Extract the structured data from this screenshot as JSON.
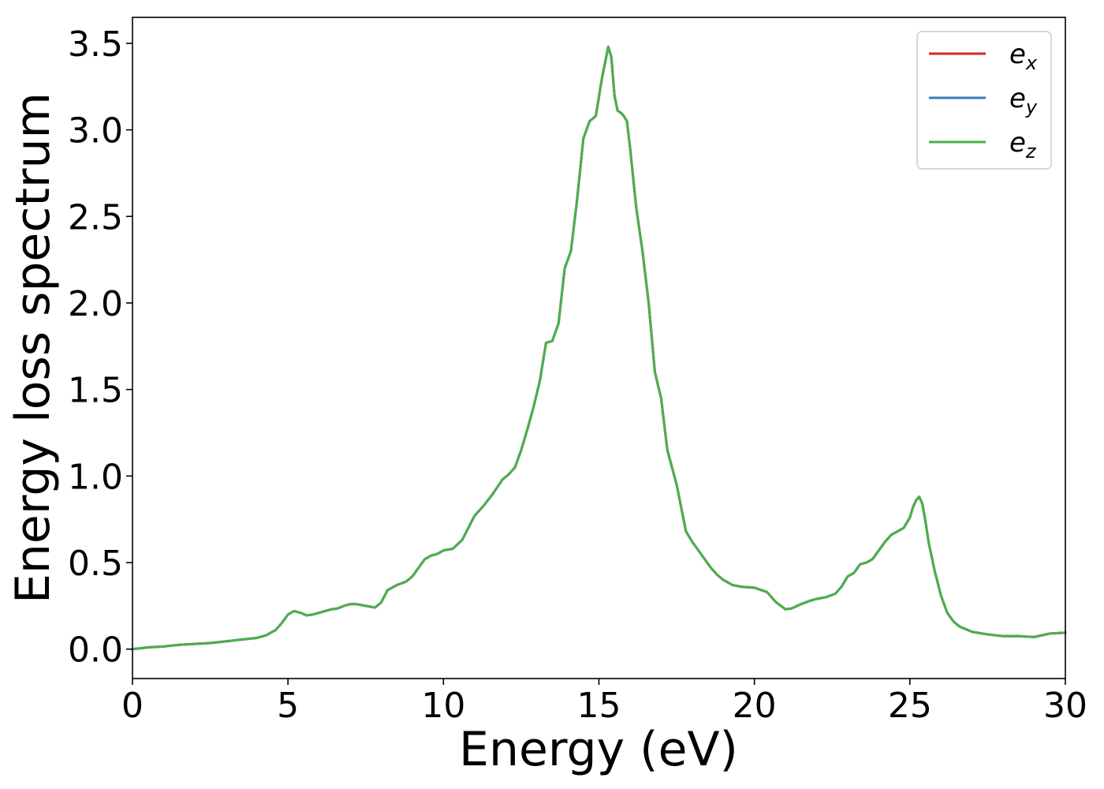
{
  "chart_data": {
    "type": "line",
    "xlabel": "Energy (eV)",
    "ylabel": "Energy loss spectrum",
    "xlim": [
      0,
      30
    ],
    "ylim": [
      -0.17,
      3.65
    ],
    "xticks": [
      0,
      5,
      10,
      15,
      20,
      25,
      30
    ],
    "xtick_labels": [
      "0",
      "5",
      "10",
      "15",
      "20",
      "25",
      "30"
    ],
    "yticks": [
      0.0,
      0.5,
      1.0,
      1.5,
      2.0,
      2.5,
      3.0,
      3.5
    ],
    "ytick_labels": [
      "0.0",
      "0.5",
      "1.0",
      "1.5",
      "2.0",
      "2.5",
      "3.0",
      "3.5"
    ],
    "grid": false,
    "legend_position": "top-right",
    "x": [
      0,
      0.5,
      1,
      1.5,
      2,
      2.5,
      3,
      3.5,
      4,
      4.3,
      4.6,
      4.8,
      5.0,
      5.2,
      5.4,
      5.6,
      5.8,
      6.0,
      6.2,
      6.4,
      6.6,
      6.8,
      7.0,
      7.2,
      7.5,
      7.8,
      8.0,
      8.2,
      8.5,
      8.8,
      9.0,
      9.2,
      9.4,
      9.6,
      9.8,
      10.0,
      10.3,
      10.6,
      10.8,
      11.0,
      11.3,
      11.6,
      11.9,
      12.1,
      12.3,
      12.5,
      12.7,
      12.9,
      13.1,
      13.3,
      13.5,
      13.7,
      13.9,
      14.1,
      14.3,
      14.5,
      14.7,
      14.9,
      15.1,
      15.3,
      15.4,
      15.5,
      15.6,
      15.7,
      15.8,
      15.9,
      16.0,
      16.2,
      16.4,
      16.6,
      16.8,
      17.0,
      17.2,
      17.5,
      17.8,
      18.0,
      18.2,
      18.4,
      18.6,
      18.8,
      19.0,
      19.3,
      19.6,
      20.0,
      20.4,
      20.7,
      21.0,
      21.2,
      21.5,
      21.8,
      22.0,
      22.3,
      22.6,
      22.8,
      23.0,
      23.2,
      23.4,
      23.6,
      23.8,
      24.0,
      24.2,
      24.4,
      24.6,
      24.8,
      25.0,
      25.1,
      25.2,
      25.3,
      25.4,
      25.5,
      25.6,
      25.8,
      26.0,
      26.2,
      26.4,
      26.6,
      27.0,
      27.5,
      28.0,
      28.5,
      29.0,
      29.5,
      30.0
    ],
    "series": [
      {
        "name": "e_x",
        "label_base": "e",
        "label_sub": "x",
        "color": "#d62728",
        "values": [
          0.0,
          0.01,
          0.015,
          0.025,
          0.03,
          0.035,
          0.045,
          0.055,
          0.065,
          0.08,
          0.11,
          0.15,
          0.2,
          0.22,
          0.21,
          0.195,
          0.2,
          0.21,
          0.22,
          0.23,
          0.235,
          0.25,
          0.26,
          0.26,
          0.25,
          0.24,
          0.27,
          0.34,
          0.37,
          0.39,
          0.42,
          0.47,
          0.52,
          0.54,
          0.55,
          0.57,
          0.58,
          0.63,
          0.7,
          0.77,
          0.83,
          0.9,
          0.98,
          1.01,
          1.05,
          1.15,
          1.27,
          1.4,
          1.55,
          1.77,
          1.78,
          1.88,
          2.2,
          2.3,
          2.6,
          2.95,
          3.05,
          3.08,
          3.3,
          3.48,
          3.42,
          3.2,
          3.11,
          3.1,
          3.08,
          3.05,
          2.9,
          2.55,
          2.3,
          2.0,
          1.6,
          1.45,
          1.15,
          0.95,
          0.68,
          0.62,
          0.57,
          0.52,
          0.47,
          0.43,
          0.4,
          0.37,
          0.36,
          0.355,
          0.33,
          0.27,
          0.23,
          0.235,
          0.26,
          0.28,
          0.29,
          0.3,
          0.32,
          0.36,
          0.42,
          0.44,
          0.49,
          0.5,
          0.52,
          0.57,
          0.62,
          0.66,
          0.68,
          0.7,
          0.76,
          0.82,
          0.86,
          0.88,
          0.84,
          0.74,
          0.62,
          0.45,
          0.31,
          0.21,
          0.16,
          0.13,
          0.1,
          0.085,
          0.075,
          0.075,
          0.07,
          0.09,
          0.095
        ]
      },
      {
        "name": "e_y",
        "label_base": "e",
        "label_sub": "y",
        "color": "#377eb8",
        "values": [
          0.0,
          0.01,
          0.015,
          0.025,
          0.03,
          0.035,
          0.045,
          0.055,
          0.065,
          0.08,
          0.11,
          0.15,
          0.2,
          0.22,
          0.21,
          0.195,
          0.2,
          0.21,
          0.22,
          0.23,
          0.235,
          0.25,
          0.26,
          0.26,
          0.25,
          0.24,
          0.27,
          0.34,
          0.37,
          0.39,
          0.42,
          0.47,
          0.52,
          0.54,
          0.55,
          0.57,
          0.58,
          0.63,
          0.7,
          0.77,
          0.83,
          0.9,
          0.98,
          1.01,
          1.05,
          1.15,
          1.27,
          1.4,
          1.55,
          1.77,
          1.78,
          1.88,
          2.2,
          2.3,
          2.6,
          2.95,
          3.05,
          3.08,
          3.3,
          3.48,
          3.42,
          3.2,
          3.11,
          3.1,
          3.08,
          3.05,
          2.9,
          2.55,
          2.3,
          2.0,
          1.6,
          1.45,
          1.15,
          0.95,
          0.68,
          0.62,
          0.57,
          0.52,
          0.47,
          0.43,
          0.4,
          0.37,
          0.36,
          0.355,
          0.33,
          0.27,
          0.23,
          0.235,
          0.26,
          0.28,
          0.29,
          0.3,
          0.32,
          0.36,
          0.42,
          0.44,
          0.49,
          0.5,
          0.52,
          0.57,
          0.62,
          0.66,
          0.68,
          0.7,
          0.76,
          0.82,
          0.86,
          0.88,
          0.84,
          0.74,
          0.62,
          0.45,
          0.31,
          0.21,
          0.16,
          0.13,
          0.1,
          0.085,
          0.075,
          0.075,
          0.07,
          0.09,
          0.095
        ]
      },
      {
        "name": "e_z",
        "label_base": "e",
        "label_sub": "z",
        "color": "#4daf4a",
        "values": [
          0.0,
          0.01,
          0.015,
          0.025,
          0.03,
          0.035,
          0.045,
          0.055,
          0.065,
          0.08,
          0.11,
          0.15,
          0.2,
          0.22,
          0.21,
          0.195,
          0.2,
          0.21,
          0.22,
          0.23,
          0.235,
          0.25,
          0.26,
          0.26,
          0.25,
          0.24,
          0.27,
          0.34,
          0.37,
          0.39,
          0.42,
          0.47,
          0.52,
          0.54,
          0.55,
          0.57,
          0.58,
          0.63,
          0.7,
          0.77,
          0.83,
          0.9,
          0.98,
          1.01,
          1.05,
          1.15,
          1.27,
          1.4,
          1.55,
          1.77,
          1.78,
          1.88,
          2.2,
          2.3,
          2.6,
          2.95,
          3.05,
          3.08,
          3.3,
          3.48,
          3.42,
          3.2,
          3.11,
          3.1,
          3.08,
          3.05,
          2.9,
          2.55,
          2.3,
          2.0,
          1.6,
          1.45,
          1.15,
          0.95,
          0.68,
          0.62,
          0.57,
          0.52,
          0.47,
          0.43,
          0.4,
          0.37,
          0.36,
          0.355,
          0.33,
          0.27,
          0.23,
          0.235,
          0.26,
          0.28,
          0.29,
          0.3,
          0.32,
          0.36,
          0.42,
          0.44,
          0.49,
          0.5,
          0.52,
          0.57,
          0.62,
          0.66,
          0.68,
          0.7,
          0.76,
          0.82,
          0.86,
          0.88,
          0.84,
          0.74,
          0.62,
          0.45,
          0.31,
          0.21,
          0.16,
          0.13,
          0.1,
          0.085,
          0.075,
          0.075,
          0.07,
          0.09,
          0.095
        ]
      }
    ]
  }
}
